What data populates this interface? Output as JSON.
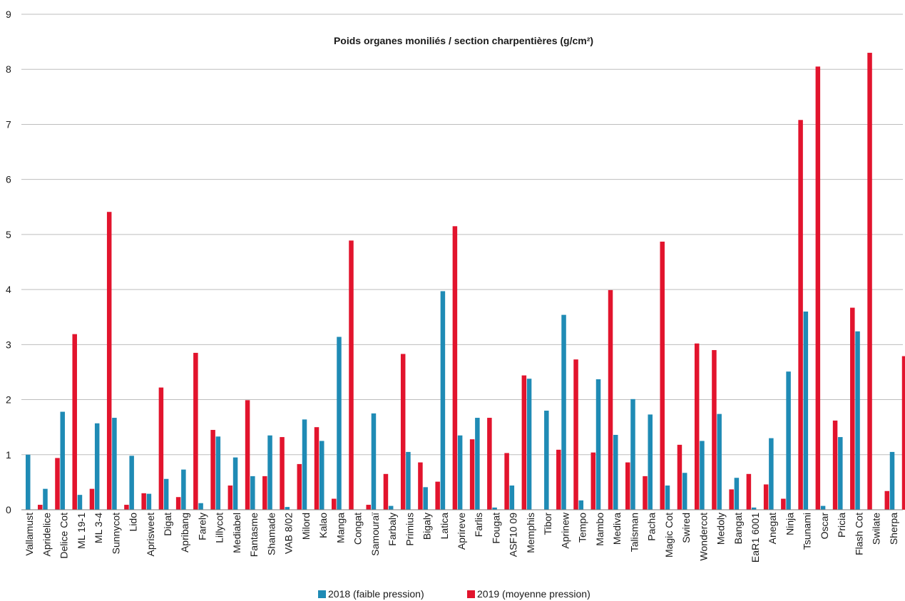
{
  "chart_data": {
    "type": "bar",
    "title": "Poids organes moniliés / section charpentières (g/cm²)",
    "xlabel": "",
    "ylabel": "",
    "ylim": [
      0,
      9
    ],
    "yticks": [
      "0",
      "1",
      "2",
      "3",
      "4",
      "5",
      "6",
      "7",
      "8",
      "9"
    ],
    "grid": true,
    "legend_position": "bottom",
    "categories": [
      "Vallamust",
      "Apridelice",
      "Delice Cot",
      "ML 19-1",
      "ML 3-4",
      "Sunnycot",
      "Lido",
      "Aprisweet",
      "Digat",
      "Apribang",
      "Farely",
      "Lillycot",
      "Mediabel",
      "Fantasme",
      "Shamade",
      "VAB 8/02",
      "Milord",
      "Kalao",
      "Manga",
      "Congat",
      "Samouraï",
      "Farbaly",
      "Primius",
      "Bigaly",
      "Latica",
      "Aprireve",
      "Farlis",
      "Fougat",
      "ASF10 09",
      "Memphis",
      "Tibor",
      "Aprinew",
      "Tempo",
      "Mambo",
      "Mediva",
      "Talisman",
      "Pacha",
      "Magic Cot",
      "Swired",
      "Wondercot",
      "Medoly",
      "Bangat",
      "EaR1 6001",
      "Anegat",
      "Ninja",
      "Tsunami",
      "Oscar",
      "Pricia",
      "Flash Cot",
      "Swilate",
      "Sherpa"
    ],
    "series": [
      {
        "name": "2018 (faible pression)",
        "color": "#1f8bb5",
        "values": [
          1.0,
          0.38,
          1.78,
          0.27,
          1.57,
          1.67,
          0.98,
          0.29,
          0.56,
          0.73,
          0.12,
          1.33,
          0.95,
          0.61,
          1.35,
          0.05,
          1.64,
          1.25,
          3.14,
          0.0,
          1.75,
          0.07,
          1.05,
          0.41,
          3.97,
          1.35,
          1.67,
          0.04,
          0.44,
          2.38,
          1.8,
          3.54,
          0.17,
          2.37,
          1.36,
          2.01,
          1.73,
          0.44,
          0.67,
          1.25,
          1.74,
          0.58,
          0.04,
          1.3,
          2.51,
          3.6,
          0.07,
          1.32,
          3.24,
          0.0,
          1.05
        ]
      },
      {
        "name": "2019 (moyenne pression)",
        "color": "#e2142d",
        "values": [
          0.09,
          0.94,
          3.19,
          0.38,
          5.41,
          0.09,
          0.3,
          2.22,
          0.23,
          2.85,
          1.45,
          0.44,
          1.99,
          0.61,
          1.32,
          0.83,
          1.5,
          0.2,
          4.89,
          0.09,
          0.65,
          2.83,
          0.86,
          0.51,
          5.15,
          1.28,
          1.67,
          1.03,
          2.44,
          0.0,
          1.09,
          2.73,
          1.04,
          3.99,
          0.86,
          0.61,
          4.87,
          1.18,
          3.02,
          2.9,
          0.37,
          0.65,
          0.46,
          0.2,
          7.08,
          8.05,
          1.62,
          3.67,
          8.3,
          0.34,
          2.79
        ]
      }
    ]
  }
}
